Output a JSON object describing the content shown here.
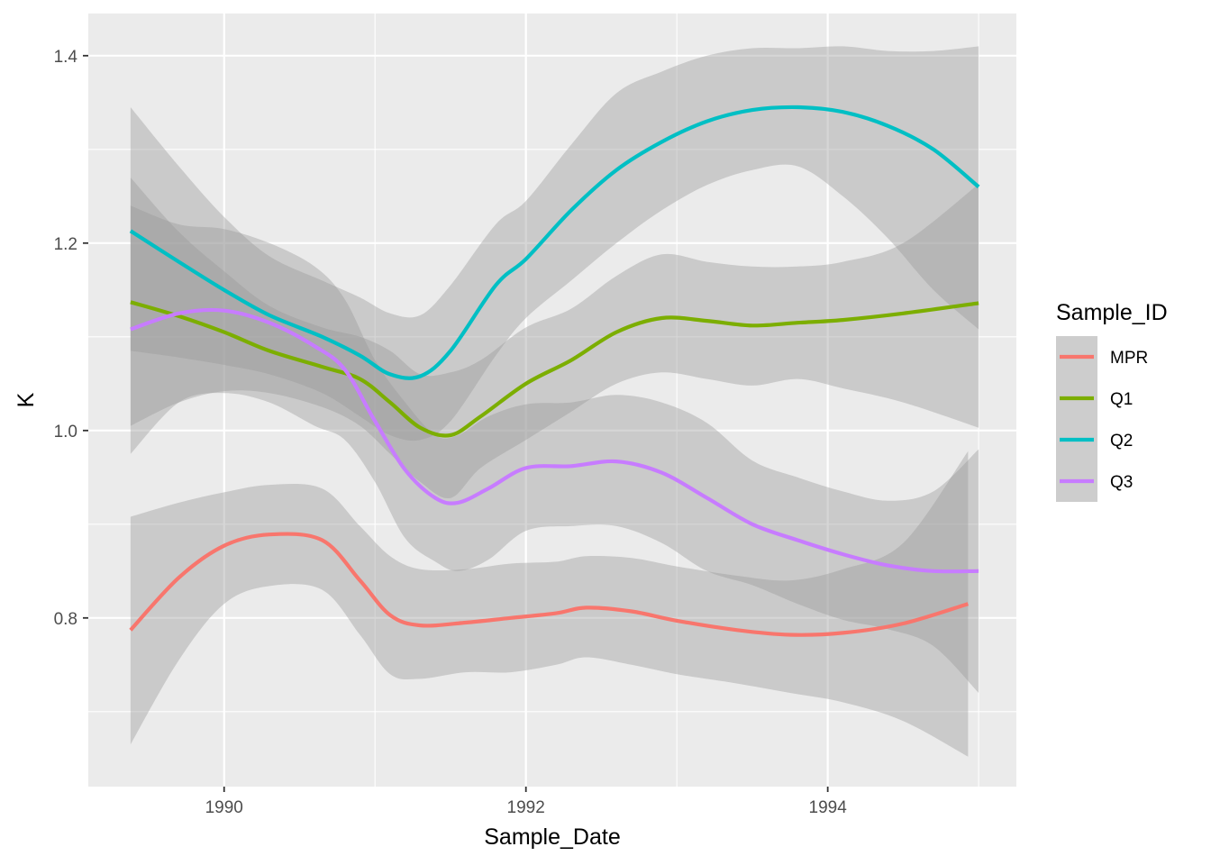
{
  "chart_data": {
    "type": "line",
    "title": "",
    "xlabel": "Sample_Date",
    "ylabel": "K",
    "xlim": [
      1989.1,
      1995.25
    ],
    "ylim": [
      0.62,
      1.445
    ],
    "x_ticks": [
      1990,
      1992,
      1994
    ],
    "x_tick_labels": [
      "1990",
      "1992",
      "1994"
    ],
    "y_ticks": [
      0.8,
      1.0,
      1.2,
      1.4
    ],
    "y_tick_labels": [
      "0.8",
      "1.0",
      "1.2",
      "1.4"
    ],
    "grid": true,
    "legend": {
      "title": "Sample_ID",
      "position": "right"
    },
    "series": [
      {
        "name": "MPR",
        "color": "#F8766D",
        "x": [
          1989.38,
          1989.7,
          1990.0,
          1990.3,
          1990.65,
          1990.9,
          1991.1,
          1991.3,
          1991.6,
          1991.9,
          1992.2,
          1992.4,
          1992.7,
          1993.0,
          1993.4,
          1993.75,
          1994.1,
          1994.5,
          1994.93
        ],
        "y": [
          0.787,
          0.843,
          0.877,
          0.889,
          0.883,
          0.84,
          0.803,
          0.792,
          0.795,
          0.8,
          0.805,
          0.811,
          0.807,
          0.797,
          0.787,
          0.782,
          0.784,
          0.794,
          0.815
        ],
        "lower": [
          0.665,
          0.755,
          0.815,
          0.834,
          0.83,
          0.782,
          0.74,
          0.735,
          0.742,
          0.742,
          0.75,
          0.758,
          0.75,
          0.74,
          0.73,
          0.72,
          0.71,
          0.69,
          0.652
        ],
        "upper": [
          0.908,
          0.923,
          0.934,
          0.942,
          0.938,
          0.898,
          0.866,
          0.852,
          0.852,
          0.858,
          0.86,
          0.866,
          0.864,
          0.855,
          0.845,
          0.84,
          0.852,
          0.88,
          0.978
        ]
      },
      {
        "name": "Q1",
        "color": "#7CAE00",
        "x": [
          1989.38,
          1989.7,
          1990.0,
          1990.3,
          1990.65,
          1990.9,
          1991.1,
          1991.3,
          1991.5,
          1991.7,
          1992.0,
          1992.3,
          1992.6,
          1992.9,
          1993.2,
          1993.5,
          1993.8,
          1994.1,
          1994.5,
          1995.0
        ],
        "y": [
          1.137,
          1.122,
          1.105,
          1.085,
          1.068,
          1.055,
          1.03,
          1.003,
          0.995,
          1.015,
          1.05,
          1.075,
          1.105,
          1.12,
          1.117,
          1.112,
          1.115,
          1.118,
          1.125,
          1.136
        ],
        "lower": [
          1.005,
          1.03,
          1.042,
          1.04,
          1.025,
          1.005,
          0.975,
          0.945,
          0.928,
          0.96,
          0.99,
          1.02,
          1.05,
          1.062,
          1.055,
          1.048,
          1.055,
          1.045,
          1.03,
          1.003
        ],
        "upper": [
          1.27,
          1.212,
          1.17,
          1.133,
          1.11,
          1.1,
          1.085,
          1.06,
          1.062,
          1.075,
          1.11,
          1.13,
          1.165,
          1.188,
          1.18,
          1.175,
          1.175,
          1.18,
          1.2,
          1.263
        ]
      },
      {
        "name": "Q2",
        "color": "#00BFC4",
        "x": [
          1989.38,
          1989.7,
          1990.0,
          1990.3,
          1990.65,
          1990.9,
          1991.1,
          1991.3,
          1991.5,
          1991.8,
          1992.0,
          1992.3,
          1992.6,
          1992.9,
          1993.2,
          1993.5,
          1993.8,
          1994.1,
          1994.4,
          1994.7,
          1995.0
        ],
        "y": [
          1.213,
          1.18,
          1.15,
          1.123,
          1.1,
          1.08,
          1.06,
          1.058,
          1.085,
          1.155,
          1.183,
          1.235,
          1.278,
          1.308,
          1.33,
          1.342,
          1.345,
          1.34,
          1.325,
          1.3,
          1.26
        ],
        "lower": [
          1.085,
          1.078,
          1.07,
          1.06,
          1.04,
          1.015,
          0.995,
          0.99,
          1.01,
          1.08,
          1.12,
          1.16,
          1.2,
          1.235,
          1.262,
          1.278,
          1.282,
          1.25,
          1.205,
          1.15,
          1.108
        ],
        "upper": [
          1.345,
          1.282,
          1.228,
          1.186,
          1.16,
          1.142,
          1.125,
          1.123,
          1.155,
          1.22,
          1.245,
          1.305,
          1.36,
          1.383,
          1.4,
          1.408,
          1.408,
          1.41,
          1.405,
          1.405,
          1.41
        ]
      },
      {
        "name": "Q3",
        "color": "#C77CFF",
        "x": [
          1989.38,
          1989.7,
          1990.0,
          1990.3,
          1990.6,
          1990.8,
          1991.0,
          1991.2,
          1991.4,
          1991.55,
          1991.75,
          1992.0,
          1992.3,
          1992.6,
          1992.9,
          1993.2,
          1993.5,
          1993.8,
          1994.1,
          1994.4,
          1994.7,
          1995.0
        ],
        "y": [
          1.108,
          1.125,
          1.128,
          1.115,
          1.09,
          1.065,
          1.01,
          0.958,
          0.928,
          0.923,
          0.938,
          0.96,
          0.962,
          0.967,
          0.955,
          0.928,
          0.9,
          0.883,
          0.868,
          0.856,
          0.85,
          0.85
        ],
        "lower": [
          0.975,
          1.03,
          1.04,
          1.03,
          1.005,
          0.99,
          0.945,
          0.885,
          0.86,
          0.85,
          0.862,
          0.893,
          0.898,
          0.898,
          0.88,
          0.85,
          0.835,
          0.815,
          0.798,
          0.788,
          0.77,
          0.72
        ],
        "upper": [
          1.24,
          1.22,
          1.215,
          1.2,
          1.175,
          1.14,
          1.075,
          1.03,
          0.995,
          0.995,
          1.015,
          1.028,
          1.03,
          1.038,
          1.03,
          1.008,
          0.968,
          0.95,
          0.935,
          0.925,
          0.935,
          0.98
        ]
      }
    ]
  }
}
